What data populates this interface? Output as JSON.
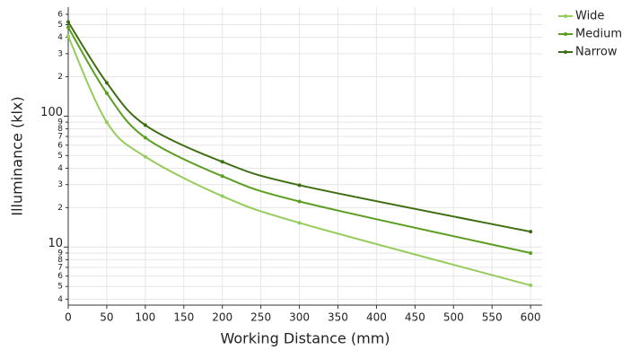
{
  "chart_data": {
    "type": "line",
    "x_label": "Working Distance (mm)",
    "y_label": "Illuminance (klx)",
    "x": [
      0,
      50,
      100,
      200,
      300,
      600
    ],
    "series": [
      {
        "name": "Wide",
        "color": "#96cc5c",
        "values": [
          407,
          90,
          49,
          24.5,
          15.3,
          5.1
        ]
      },
      {
        "name": "Medium",
        "color": "#5c9e22",
        "values": [
          477,
          150,
          68.5,
          34.8,
          22.3,
          9
        ]
      },
      {
        "name": "Narrow",
        "color": "#3e6e14",
        "values": [
          524,
          180,
          85.4,
          44.8,
          29.7,
          13.1
        ]
      }
    ],
    "xlim": [
      0,
      615
    ],
    "xticks": [
      0,
      50,
      100,
      150,
      200,
      250,
      300,
      350,
      400,
      450,
      500,
      550,
      600
    ],
    "ylim": [
      3.6,
      680
    ],
    "y_scale": "log",
    "yticks": [
      4,
      5,
      6,
      7,
      8,
      9,
      10,
      {
        "value": 20,
        "label": "2"
      },
      {
        "value": 30,
        "label": "3"
      },
      {
        "value": 40,
        "label": "4"
      },
      {
        "value": 50,
        "label": "5"
      },
      {
        "value": 60,
        "label": "6"
      },
      {
        "value": 70,
        "label": "7"
      },
      {
        "value": 80,
        "label": "8"
      },
      {
        "value": 90,
        "label": "9"
      },
      100,
      {
        "value": 200,
        "label": "2"
      },
      {
        "value": 300,
        "label": "3"
      },
      {
        "value": 400,
        "label": "4"
      },
      {
        "value": 500,
        "label": "5"
      },
      {
        "value": 600,
        "label": "6"
      }
    ],
    "grid": true,
    "legend": "right"
  }
}
